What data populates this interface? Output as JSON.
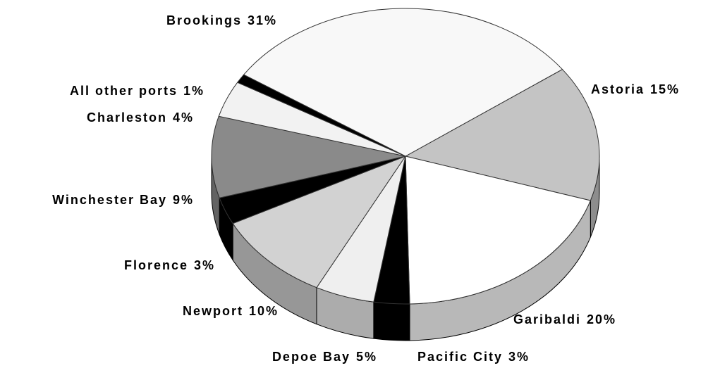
{
  "chart_data": {
    "type": "pie3d",
    "categories": [
      "Astoria",
      "Garibaldi",
      "Pacific City",
      "Depoe Bay",
      "Newport",
      "Florence",
      "Winchester Bay",
      "Charleston",
      "All other ports",
      "Brookings"
    ],
    "values": [
      15,
      20,
      3,
      5,
      10,
      3,
      9,
      4,
      1,
      31
    ],
    "value_labels": [
      "15%",
      "20%",
      "3%",
      "5%",
      "10%",
      "3%",
      "9%",
      "4%",
      "1%",
      "31%"
    ],
    "colors": [
      "#c4c4c4",
      "#ffffff",
      "#000000",
      "#efefef",
      "#d2d2d2",
      "#000000",
      "#8a8a8a",
      "#f2f2f2",
      "#000000",
      "#f8f8f8"
    ]
  }
}
